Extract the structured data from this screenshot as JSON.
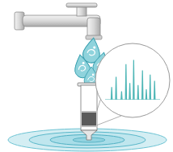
{
  "chart_data": {
    "type": "line",
    "x": [
      0,
      11,
      12,
      13,
      19,
      20,
      21,
      29,
      30,
      31,
      37,
      38,
      39,
      44,
      45,
      46,
      51,
      52,
      53,
      59,
      60,
      61,
      67,
      68,
      69,
      74,
      75,
      76,
      81,
      82,
      83,
      89,
      90,
      91,
      100
    ],
    "values": [
      0,
      0,
      30,
      0,
      0,
      55,
      0,
      0,
      20,
      0,
      0,
      85,
      0,
      0,
      40,
      0,
      0,
      95,
      0,
      0,
      35,
      0,
      0,
      70,
      0,
      0,
      25,
      0,
      0,
      60,
      0,
      0,
      45,
      0,
      0
    ],
    "color": "#4db6b6",
    "xlim": [
      0,
      100
    ],
    "ylim": [
      0,
      100
    ],
    "tick_labels": false
  }
}
